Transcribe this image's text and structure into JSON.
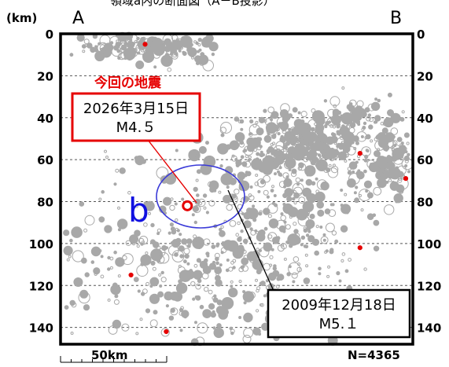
{
  "chart_data": {
    "type": "scatter",
    "title": "領域a内の断面図（A－B投影）",
    "y_unit": "(km)",
    "ylim": [
      0,
      148
    ],
    "y_ticks": [
      0,
      20,
      40,
      60,
      80,
      100,
      120,
      140
    ],
    "gridlines": [
      20,
      40,
      60,
      80,
      100,
      120,
      140
    ],
    "left_label": "A",
    "right_label": "B",
    "scale_label": "50km",
    "count_label": "N=4365",
    "region_label": "b",
    "colors": {
      "events": "#a8a8a8",
      "highlight": "#e60000",
      "region": "#3a3ad8",
      "region_label": "#1010e0"
    },
    "callout_current": {
      "header": "今回の地震",
      "date": "2026年3月15日",
      "magnitude": "M4.５"
    },
    "callout_past": {
      "date": "2009年12月18日",
      "magnitude": "M5.１"
    },
    "highlighted_events": [
      {
        "x_frac": 0.36,
        "depth": 82,
        "size": "large"
      },
      {
        "x_frac": 0.24,
        "depth": 5,
        "size": "small"
      },
      {
        "x_frac": 0.2,
        "depth": 115,
        "size": "small"
      },
      {
        "x_frac": 0.3,
        "depth": 142,
        "size": "small"
      },
      {
        "x_frac": 0.85,
        "depth": 57,
        "size": "small"
      },
      {
        "x_frac": 0.98,
        "depth": 69,
        "size": "small"
      },
      {
        "x_frac": 0.85,
        "depth": 102,
        "size": "small"
      }
    ]
  }
}
